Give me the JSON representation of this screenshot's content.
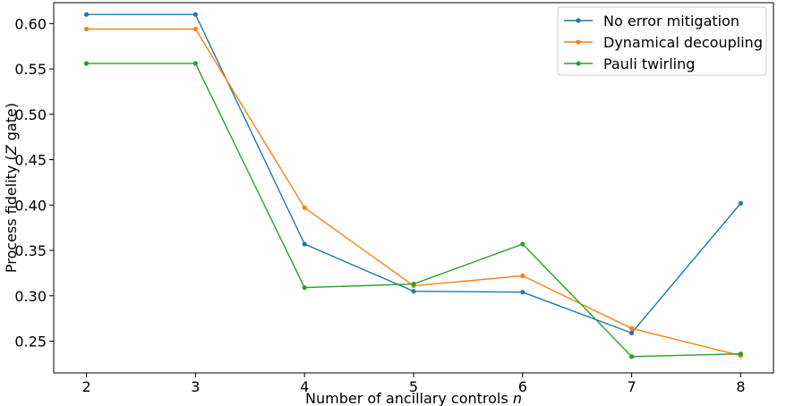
{
  "chart_data": {
    "type": "line",
    "title": "",
    "xlabel": "Number of ancillary controls",
    "xlabel_var": "n",
    "ylabel_prefix": "Process fidelity (",
    "ylabel_var": "Z",
    "ylabel_suffix": " gate)",
    "x": [
      2,
      3,
      4,
      5,
      6,
      7,
      8
    ],
    "xlim": [
      1.7,
      8.3
    ],
    "ylim": [
      0.215,
      0.623
    ],
    "xticks": [
      "2",
      "3",
      "4",
      "5",
      "6",
      "7",
      "8"
    ],
    "yticks": [
      "0.25",
      "0.30",
      "0.35",
      "0.40",
      "0.45",
      "0.50",
      "0.55",
      "0.60"
    ],
    "legend_position": "top-right",
    "series": [
      {
        "name": "No error mitigation",
        "color": "#1f77b4",
        "values": [
          0.61,
          0.61,
          0.357,
          0.305,
          0.304,
          0.259,
          0.402
        ]
      },
      {
        "name": "Dynamical decoupling",
        "color": "#ff7f0e",
        "values": [
          0.594,
          0.594,
          0.397,
          0.311,
          0.322,
          0.264,
          0.234
        ]
      },
      {
        "name": "Pauli twirling",
        "color": "#2ca02c",
        "values": [
          0.556,
          0.556,
          0.309,
          0.313,
          0.357,
          0.233,
          0.236
        ]
      }
    ]
  }
}
